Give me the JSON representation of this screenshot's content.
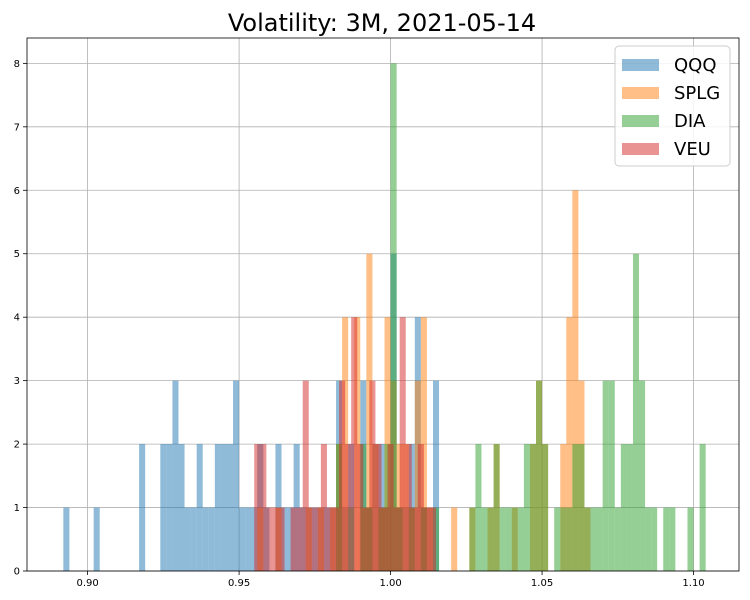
{
  "chart_data": {
    "type": "bar",
    "title": "Volatility: 3M, 2021-05-14",
    "xlabel": "",
    "ylabel": "",
    "xlim": [
      0.88,
      1.115
    ],
    "ylim": [
      0,
      8.4
    ],
    "xticks": [
      0.9,
      0.95,
      1.0,
      1.05,
      1.1
    ],
    "xtick_labels": [
      "0.90",
      "0.95",
      "1.00",
      "1.05",
      "1.10"
    ],
    "yticks": [
      0,
      1,
      2,
      3,
      4,
      5,
      6,
      7,
      8
    ],
    "ytick_labels": [
      "0",
      "1",
      "2",
      "3",
      "4",
      "5",
      "6",
      "7",
      "8"
    ],
    "grid": true,
    "legend_position": "top-right",
    "series": [
      {
        "name": "QQQ",
        "color": "#1f77b4",
        "bins": [
          [
            0.892,
            0.894,
            1
          ],
          [
            0.902,
            0.904,
            1
          ],
          [
            0.917,
            0.919,
            2
          ],
          [
            0.924,
            0.926,
            2
          ],
          [
            0.926,
            0.928,
            2
          ],
          [
            0.928,
            0.93,
            3
          ],
          [
            0.93,
            0.932,
            2
          ],
          [
            0.932,
            0.934,
            1
          ],
          [
            0.934,
            0.936,
            1
          ],
          [
            0.936,
            0.938,
            2
          ],
          [
            0.938,
            0.94,
            1
          ],
          [
            0.94,
            0.942,
            1
          ],
          [
            0.942,
            0.944,
            2
          ],
          [
            0.944,
            0.946,
            2
          ],
          [
            0.946,
            0.948,
            2
          ],
          [
            0.948,
            0.95,
            3
          ],
          [
            0.95,
            0.952,
            1
          ],
          [
            0.952,
            0.954,
            1
          ],
          [
            0.954,
            0.956,
            1
          ],
          [
            0.956,
            0.958,
            2
          ],
          [
            0.958,
            0.96,
            1
          ],
          [
            0.962,
            0.964,
            2
          ],
          [
            0.964,
            0.966,
            1
          ],
          [
            0.966,
            0.968,
            1
          ],
          [
            0.968,
            0.97,
            2
          ],
          [
            0.97,
            0.972,
            1
          ],
          [
            0.972,
            0.974,
            1
          ],
          [
            0.974,
            0.976,
            1
          ],
          [
            0.976,
            0.978,
            1
          ],
          [
            0.978,
            0.98,
            1
          ],
          [
            0.98,
            0.982,
            1
          ],
          [
            0.982,
            0.984,
            3
          ],
          [
            0.984,
            0.986,
            1
          ],
          [
            0.986,
            0.988,
            2
          ],
          [
            0.99,
            0.992,
            3
          ],
          [
            0.992,
            0.994,
            1
          ],
          [
            0.994,
            0.996,
            2
          ],
          [
            0.996,
            0.998,
            2
          ],
          [
            0.998,
            1.0,
            1
          ],
          [
            1.0,
            1.002,
            5
          ],
          [
            1.002,
            1.004,
            1
          ],
          [
            1.004,
            1.006,
            1
          ],
          [
            1.006,
            1.008,
            2
          ],
          [
            1.008,
            1.01,
            4
          ],
          [
            1.01,
            1.012,
            1
          ],
          [
            1.012,
            1.014,
            1
          ],
          [
            1.014,
            1.016,
            3
          ]
        ]
      },
      {
        "name": "SPLG",
        "color": "#ff7f0e",
        "bins": [
          [
            0.956,
            0.958,
            1
          ],
          [
            0.962,
            0.964,
            1
          ],
          [
            0.972,
            0.974,
            1
          ],
          [
            0.976,
            0.978,
            1
          ],
          [
            0.98,
            0.982,
            1
          ],
          [
            0.982,
            0.984,
            2
          ],
          [
            0.984,
            0.986,
            4
          ],
          [
            0.988,
            0.99,
            4
          ],
          [
            0.99,
            0.992,
            1
          ],
          [
            0.992,
            0.994,
            5
          ],
          [
            0.994,
            0.996,
            2
          ],
          [
            0.996,
            0.998,
            1
          ],
          [
            0.998,
            1.0,
            4
          ],
          [
            1.0,
            1.002,
            3
          ],
          [
            1.002,
            1.004,
            2
          ],
          [
            1.004,
            1.006,
            2
          ],
          [
            1.006,
            1.008,
            1
          ],
          [
            1.008,
            1.01,
            3
          ],
          [
            1.01,
            1.012,
            4
          ],
          [
            1.012,
            1.014,
            1
          ],
          [
            1.02,
            1.022,
            1
          ],
          [
            1.026,
            1.028,
            1
          ],
          [
            1.032,
            1.034,
            1
          ],
          [
            1.034,
            1.036,
            2
          ],
          [
            1.04,
            1.042,
            1
          ],
          [
            1.046,
            1.048,
            2
          ],
          [
            1.048,
            1.05,
            3
          ],
          [
            1.05,
            1.052,
            2
          ],
          [
            1.056,
            1.058,
            2
          ],
          [
            1.058,
            1.06,
            4
          ],
          [
            1.06,
            1.062,
            6
          ],
          [
            1.062,
            1.064,
            3
          ],
          [
            1.064,
            1.066,
            1
          ]
        ]
      },
      {
        "name": "DIA",
        "color": "#2ca02c",
        "bins": [
          [
            0.982,
            0.984,
            2
          ],
          [
            0.986,
            0.988,
            1
          ],
          [
            0.99,
            0.992,
            2
          ],
          [
            0.992,
            0.994,
            1
          ],
          [
            0.996,
            0.998,
            1
          ],
          [
            0.998,
            1.0,
            2
          ],
          [
            1.0,
            1.002,
            8
          ],
          [
            1.002,
            1.004,
            1
          ],
          [
            1.006,
            1.008,
            1
          ],
          [
            1.01,
            1.012,
            1
          ],
          [
            1.014,
            1.016,
            1
          ],
          [
            1.026,
            1.028,
            1
          ],
          [
            1.028,
            1.03,
            2
          ],
          [
            1.03,
            1.032,
            1
          ],
          [
            1.032,
            1.034,
            1
          ],
          [
            1.034,
            1.036,
            2
          ],
          [
            1.036,
            1.038,
            1
          ],
          [
            1.038,
            1.04,
            1
          ],
          [
            1.04,
            1.042,
            1
          ],
          [
            1.042,
            1.044,
            1
          ],
          [
            1.044,
            1.046,
            2
          ],
          [
            1.046,
            1.048,
            2
          ],
          [
            1.048,
            1.05,
            3
          ],
          [
            1.05,
            1.052,
            2
          ],
          [
            1.054,
            1.056,
            1
          ],
          [
            1.056,
            1.058,
            1
          ],
          [
            1.058,
            1.06,
            1
          ],
          [
            1.06,
            1.062,
            2
          ],
          [
            1.062,
            1.064,
            2
          ],
          [
            1.064,
            1.066,
            1
          ],
          [
            1.066,
            1.068,
            1
          ],
          [
            1.068,
            1.07,
            1
          ],
          [
            1.07,
            1.072,
            3
          ],
          [
            1.072,
            1.074,
            3
          ],
          [
            1.074,
            1.076,
            1
          ],
          [
            1.076,
            1.078,
            2
          ],
          [
            1.078,
            1.08,
            2
          ],
          [
            1.08,
            1.082,
            5
          ],
          [
            1.082,
            1.084,
            3
          ],
          [
            1.084,
            1.086,
            1
          ],
          [
            1.086,
            1.088,
            1
          ],
          [
            1.09,
            1.092,
            1
          ],
          [
            1.092,
            1.094,
            1
          ],
          [
            1.098,
            1.1,
            1
          ],
          [
            1.102,
            1.104,
            2
          ]
        ]
      },
      {
        "name": "VEU",
        "color": "#d62728",
        "bins": [
          [
            0.955,
            0.957,
            2
          ],
          [
            0.957,
            0.959,
            2
          ],
          [
            0.959,
            0.961,
            1
          ],
          [
            0.961,
            0.963,
            1
          ],
          [
            0.963,
            0.965,
            1
          ],
          [
            0.967,
            0.969,
            1
          ],
          [
            0.969,
            0.971,
            1
          ],
          [
            0.971,
            0.973,
            3
          ],
          [
            0.973,
            0.975,
            1
          ],
          [
            0.975,
            0.977,
            1
          ],
          [
            0.977,
            0.979,
            2
          ],
          [
            0.979,
            0.981,
            1
          ],
          [
            0.981,
            0.983,
            1
          ],
          [
            0.983,
            0.985,
            3
          ],
          [
            0.985,
            0.987,
            2
          ],
          [
            0.987,
            0.989,
            4
          ],
          [
            0.989,
            0.991,
            2
          ],
          [
            0.991,
            0.993,
            1
          ],
          [
            0.993,
            0.995,
            3
          ],
          [
            0.995,
            0.997,
            2
          ],
          [
            0.997,
            0.999,
            1
          ],
          [
            0.999,
            1.001,
            2
          ],
          [
            1.001,
            1.003,
            1
          ],
          [
            1.003,
            1.005,
            4
          ],
          [
            1.005,
            1.007,
            2
          ],
          [
            1.007,
            1.009,
            1
          ],
          [
            1.009,
            1.011,
            2
          ],
          [
            1.011,
            1.013,
            1
          ],
          [
            1.013,
            1.015,
            1
          ]
        ]
      }
    ]
  }
}
